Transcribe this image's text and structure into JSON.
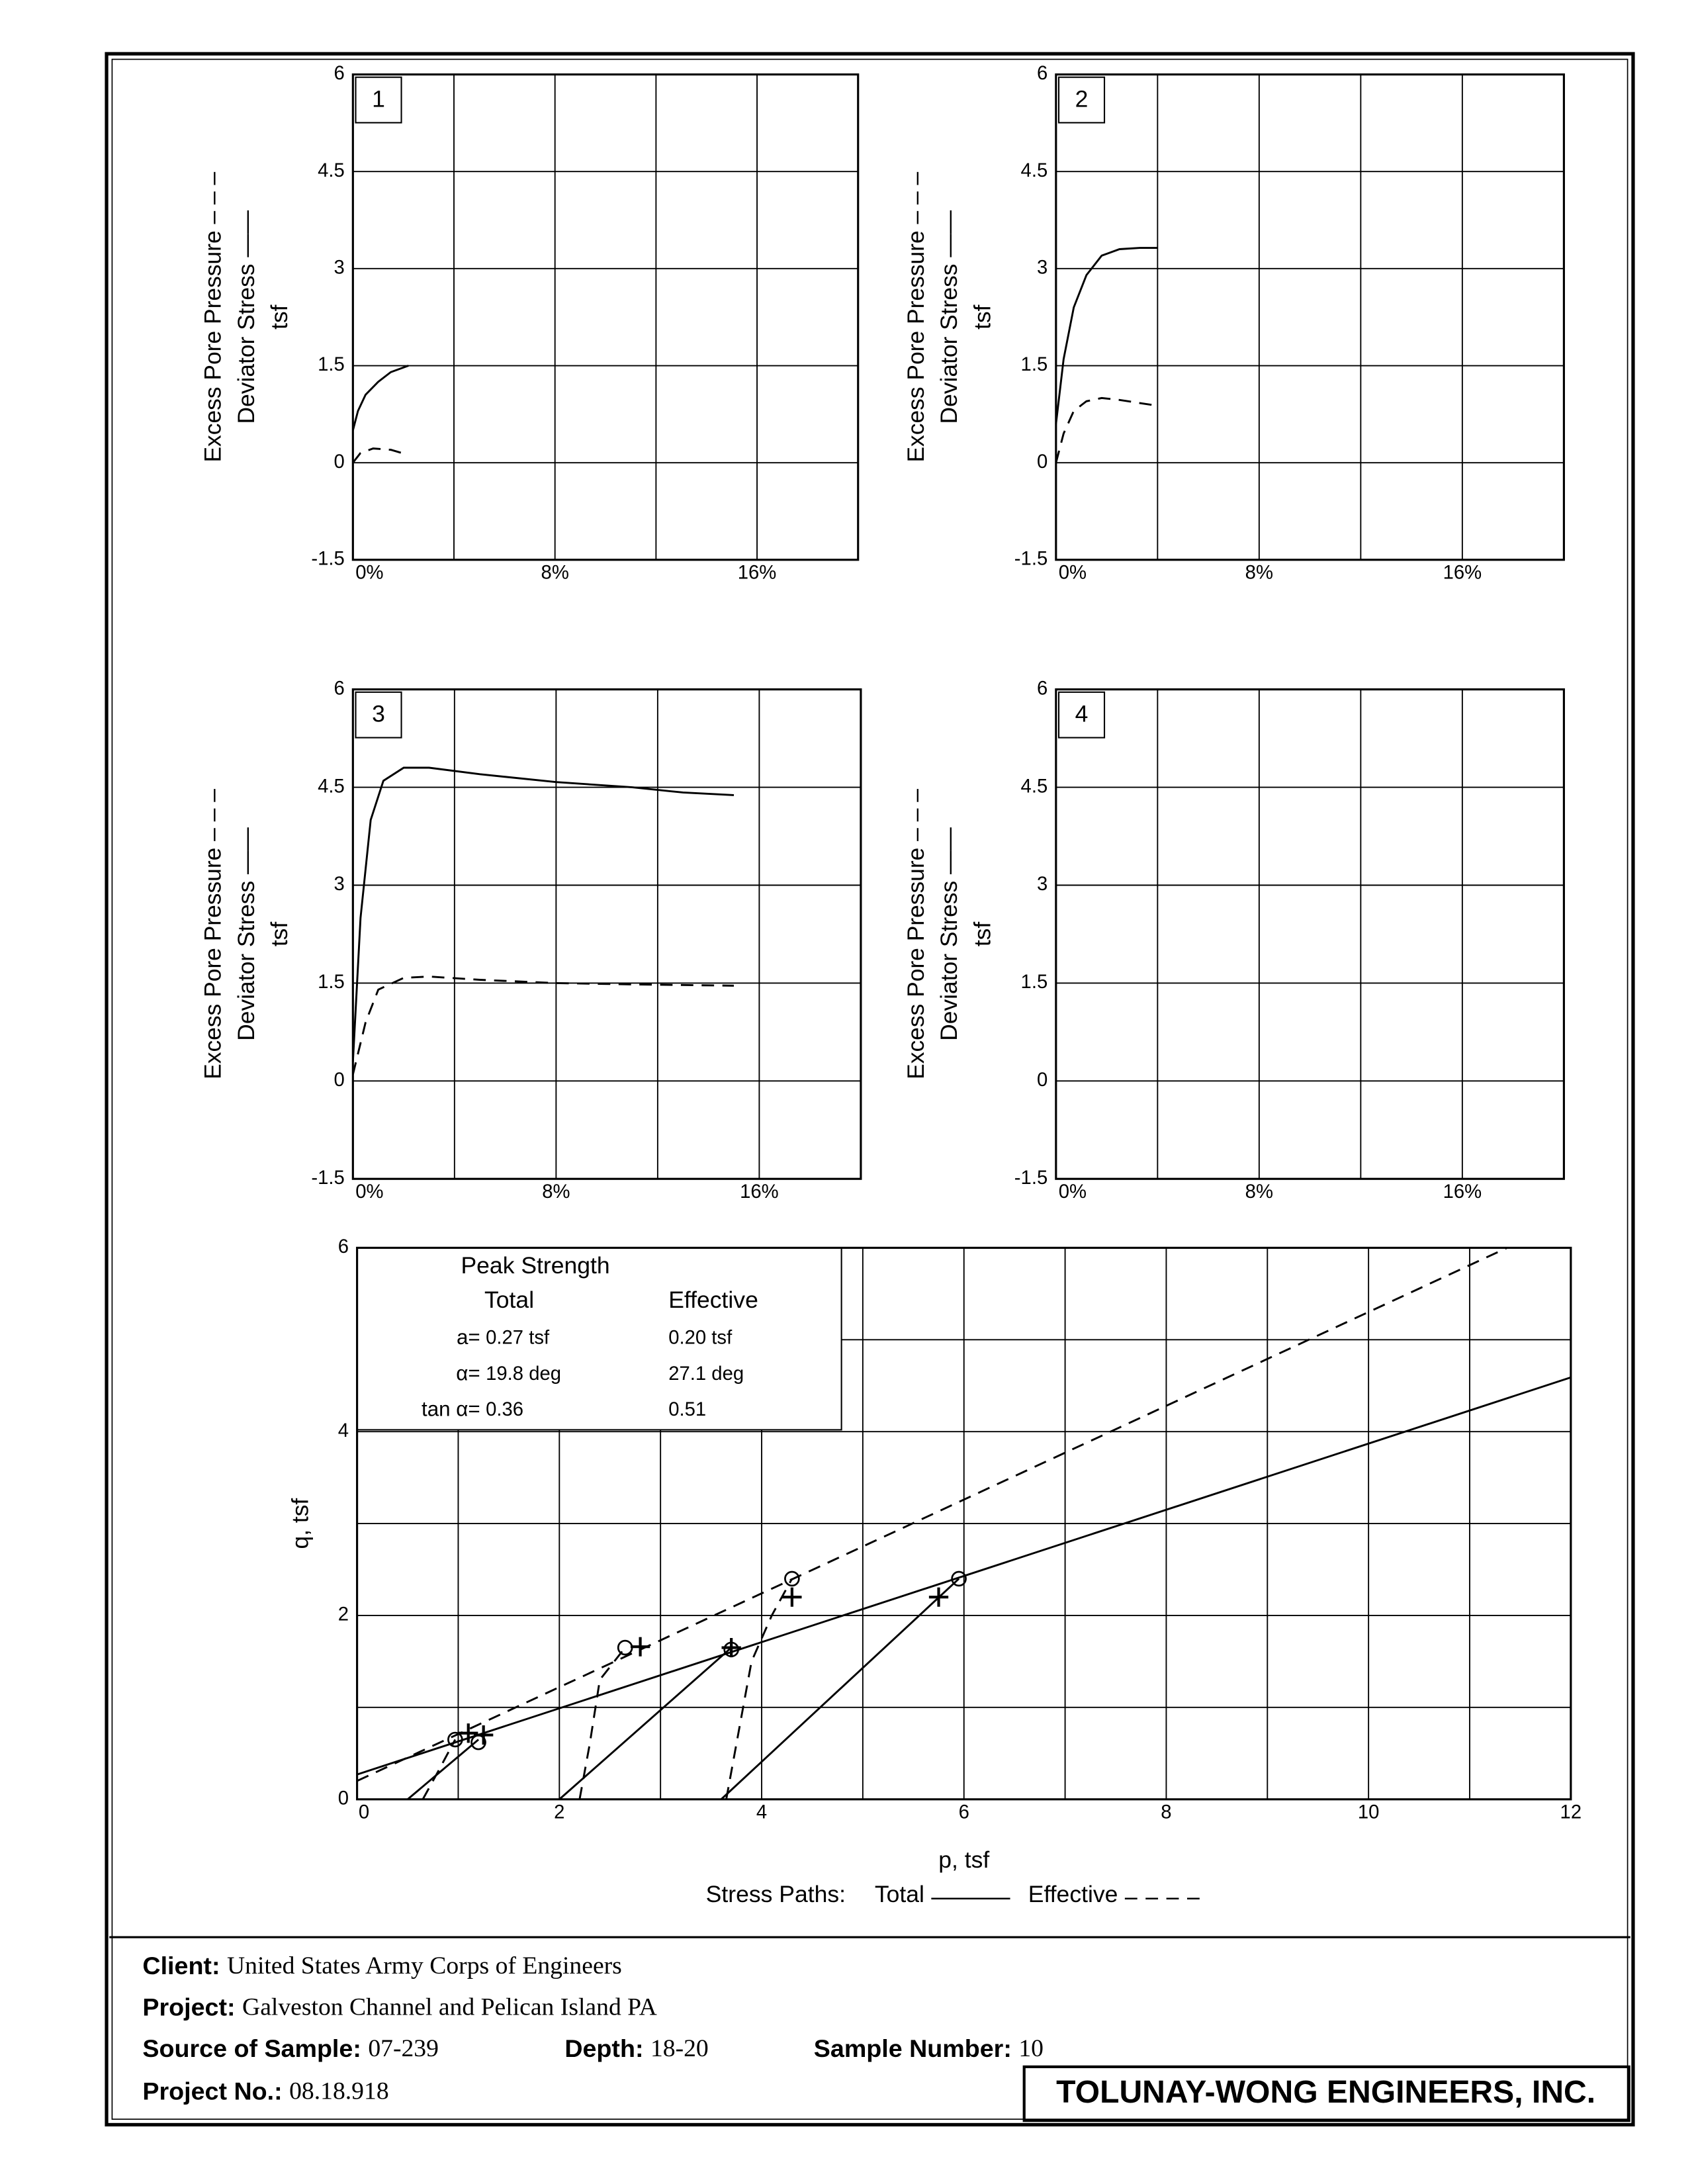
{
  "chart_data": [
    {
      "type": "line",
      "panel": "1",
      "y_label": [
        "Excess Pore Pressure – – –",
        "Deviator Stress ——",
        "tsf"
      ],
      "xlim": [
        0,
        20
      ],
      "ylim": [
        -1.5,
        6
      ],
      "xticks": [
        {
          "value": 0,
          "label": "0%"
        },
        {
          "value": 8,
          "label": "8%"
        },
        {
          "value": 16,
          "label": "16%"
        }
      ],
      "yticks": [
        -1.5,
        0,
        1.5,
        3,
        4.5,
        6
      ],
      "xgrid": [
        4,
        8,
        12,
        16
      ],
      "series": [
        {
          "style": "solid",
          "color": "#000000",
          "x": [
            0,
            0.2,
            0.5,
            1,
            1.5,
            2.2
          ],
          "values": [
            0.5,
            0.8,
            1.05,
            1.25,
            1.4,
            1.5
          ]
        },
        {
          "style": "dashed",
          "color": "#000000",
          "x": [
            0,
            0.3,
            0.8,
            1.5,
            2.2
          ],
          "values": [
            0,
            0.15,
            0.22,
            0.2,
            0.12
          ]
        }
      ]
    },
    {
      "type": "line",
      "panel": "2",
      "y_label": [
        "Excess Pore Pressure – – –",
        "Deviator Stress ——",
        "tsf"
      ],
      "xlim": [
        0,
        20
      ],
      "ylim": [
        -1.5,
        6
      ],
      "xticks": [
        {
          "value": 0,
          "label": "0%"
        },
        {
          "value": 8,
          "label": "8%"
        },
        {
          "value": 16,
          "label": "16%"
        }
      ],
      "yticks": [
        -1.5,
        0,
        1.5,
        3,
        4.5,
        6
      ],
      "xgrid": [
        4,
        8,
        12,
        16
      ],
      "series": [
        {
          "style": "solid",
          "color": "#000000",
          "x": [
            0,
            0.3,
            0.7,
            1.2,
            1.8,
            2.5,
            3.3,
            4
          ],
          "values": [
            0.6,
            1.6,
            2.4,
            2.9,
            3.2,
            3.3,
            3.32,
            3.32
          ]
        },
        {
          "style": "dashed",
          "color": "#000000",
          "x": [
            0,
            0.3,
            0.7,
            1.2,
            1.8,
            2.5,
            4
          ],
          "values": [
            0,
            0.45,
            0.8,
            0.95,
            1.0,
            0.97,
            0.88
          ]
        }
      ]
    },
    {
      "type": "line",
      "panel": "3",
      "y_label": [
        "Excess Pore Pressure – – –",
        "Deviator Stress ——",
        "tsf"
      ],
      "xlim": [
        0,
        20
      ],
      "ylim": [
        -1.5,
        6
      ],
      "xticks": [
        {
          "value": 0,
          "label": "0%"
        },
        {
          "value": 8,
          "label": "8%"
        },
        {
          "value": 16,
          "label": "16%"
        }
      ],
      "yticks": [
        -1.5,
        0,
        1.5,
        3,
        4.5,
        6
      ],
      "xgrid": [
        4,
        8,
        12,
        16
      ],
      "series": [
        {
          "style": "solid",
          "color": "#000000",
          "x": [
            0,
            0.3,
            0.7,
            1.2,
            2,
            3,
            5,
            8,
            11,
            13,
            15
          ],
          "values": [
            0.3,
            2.5,
            4.0,
            4.6,
            4.8,
            4.8,
            4.7,
            4.58,
            4.5,
            4.42,
            4.38
          ]
        },
        {
          "style": "dashed",
          "color": "#000000",
          "x": [
            0,
            0.5,
            1,
            2,
            3,
            5,
            8,
            11,
            15
          ],
          "values": [
            0.1,
            0.9,
            1.4,
            1.58,
            1.6,
            1.55,
            1.5,
            1.48,
            1.46
          ]
        }
      ]
    },
    {
      "type": "line",
      "panel": "4",
      "y_label": [
        "Excess Pore Pressure – – –",
        "Deviator Stress ——",
        "tsf"
      ],
      "xlim": [
        0,
        20
      ],
      "ylim": [
        -1.5,
        6
      ],
      "xticks": [
        {
          "value": 0,
          "label": "0%"
        },
        {
          "value": 8,
          "label": "8%"
        },
        {
          "value": 16,
          "label": "16%"
        }
      ],
      "yticks": [
        -1.5,
        0,
        1.5,
        3,
        4.5,
        6
      ],
      "xgrid": [
        4,
        8,
        12,
        16
      ],
      "series": []
    },
    {
      "type": "line",
      "x_label": "p, tsf",
      "y_label": [
        "q, tsf"
      ],
      "xlim": [
        0,
        12
      ],
      "ylim": [
        0,
        6
      ],
      "xticks": [
        0,
        2,
        4,
        6,
        8,
        10,
        12
      ],
      "yticks": [
        0,
        2,
        4,
        6
      ],
      "xgrid": [
        1,
        2,
        3,
        4,
        5,
        6,
        7,
        8,
        9,
        10,
        11
      ],
      "ygrid": [
        1,
        2,
        3,
        4,
        5
      ],
      "peak_strength": {
        "title": "Peak Strength",
        "columns": [
          "Total",
          "Effective"
        ],
        "rows": [
          {
            "label": "a=",
            "values": [
              "0.27 tsf",
              "0.20 tsf"
            ]
          },
          {
            "label": "α=",
            "values": [
              "19.8 deg",
              "27.1 deg"
            ]
          },
          {
            "label": "tan α=",
            "values": [
              "0.36",
              "0.51"
            ]
          }
        ]
      },
      "legend": {
        "label": "Stress Paths:",
        "items": [
          {
            "name": "Total",
            "style": "solid"
          },
          {
            "name": "Effective",
            "style": "dashed"
          }
        ]
      },
      "series": [
        {
          "style": "solid",
          "color": "#000000",
          "x": [
            0,
            12
          ],
          "values": [
            0.27,
            4.59
          ]
        },
        {
          "style": "dashed",
          "color": "#000000",
          "x": [
            0,
            11.37
          ],
          "values": [
            0.2,
            6.0
          ]
        },
        {
          "style": "solid",
          "color": "#000000",
          "x": [
            0.5,
            1.2
          ],
          "values": [
            0,
            0.65
          ]
        },
        {
          "style": "solid",
          "color": "#000000",
          "x": [
            2,
            3.7
          ],
          "values": [
            0,
            1.65
          ]
        },
        {
          "style": "solid",
          "color": "#000000",
          "x": [
            3.6,
            5.95
          ],
          "values": [
            0,
            2.4
          ]
        },
        {
          "style": "dashed",
          "color": "#000000",
          "x": [
            0.65,
            0.8,
            0.97
          ],
          "values": [
            0,
            0.3,
            0.65
          ]
        },
        {
          "style": "dashed",
          "color": "#000000",
          "x": [
            2.2,
            2.3,
            2.4,
            2.65
          ],
          "values": [
            0,
            0.6,
            1.3,
            1.65
          ]
        },
        {
          "style": "dashed",
          "color": "#000000",
          "x": [
            3.65,
            3.75,
            3.9,
            4.1,
            4.3
          ],
          "values": [
            0,
            0.6,
            1.5,
            2.0,
            2.4
          ]
        },
        {
          "style": "circle",
          "color": "#000000",
          "x": [
            0.97,
            1.2,
            2.65,
            3.7,
            4.3,
            5.95
          ],
          "values": [
            0.65,
            0.62,
            1.65,
            1.63,
            2.4,
            2.4
          ]
        },
        {
          "style": "plus",
          "color": "#000000",
          "x": [
            1.1,
            1.25,
            2.8,
            3.7,
            4.3,
            5.75
          ],
          "values": [
            0.72,
            0.7,
            1.66,
            1.65,
            2.2,
            2.2
          ]
        }
      ]
    }
  ],
  "footer": {
    "client": {
      "label": "Client:",
      "value": "United States Army Corps of Engineers"
    },
    "project": {
      "label": "Project:",
      "value": "Galveston Channel and Pelican Island PA"
    },
    "source": {
      "label": "Source of Sample:",
      "value": "07-239"
    },
    "depth": {
      "label": "Depth:",
      "value": "18-20"
    },
    "sample_number": {
      "label": "Sample Number:",
      "value": "10"
    },
    "project_no": {
      "label": "Project No.:",
      "value": "08.18.918"
    },
    "company": "TOLUNAY-WONG ENGINEERS, INC."
  }
}
